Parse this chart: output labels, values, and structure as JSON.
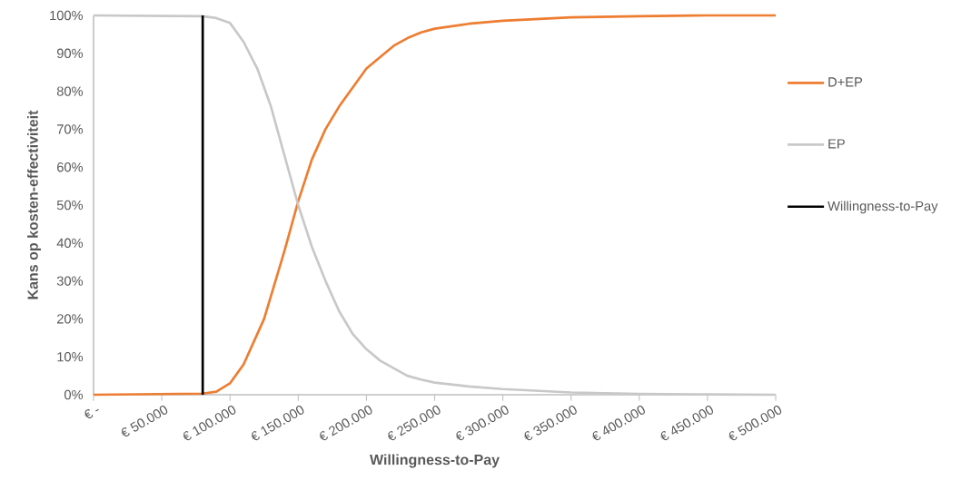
{
  "chart_data": {
    "type": "line",
    "xlabel": "Willingness-to-Pay",
    "ylabel": "Kans op kosten-effectiviteit",
    "xlim": [
      0,
      500000
    ],
    "ylim": [
      0,
      100
    ],
    "xticks": [
      {
        "value": 0,
        "label": "€ -"
      },
      {
        "value": 50000,
        "label": "€ 50.000"
      },
      {
        "value": 100000,
        "label": "€ 100.000"
      },
      {
        "value": 150000,
        "label": "€ 150.000"
      },
      {
        "value": 200000,
        "label": "€ 200.000"
      },
      {
        "value": 250000,
        "label": "€ 250.000"
      },
      {
        "value": 300000,
        "label": "€ 300.000"
      },
      {
        "value": 350000,
        "label": "€ 350.000"
      },
      {
        "value": 400000,
        "label": "€ 400.000"
      },
      {
        "value": 450000,
        "label": "€ 450.000"
      },
      {
        "value": 500000,
        "label": "€ 500.000"
      }
    ],
    "yticks": [
      {
        "value": 0,
        "label": "0%"
      },
      {
        "value": 10,
        "label": "10%"
      },
      {
        "value": 20,
        "label": "20%"
      },
      {
        "value": 30,
        "label": "30%"
      },
      {
        "value": 40,
        "label": "40%"
      },
      {
        "value": 50,
        "label": "50%"
      },
      {
        "value": 60,
        "label": "60%"
      },
      {
        "value": 70,
        "label": "70%"
      },
      {
        "value": 80,
        "label": "80%"
      },
      {
        "value": 90,
        "label": "90%"
      },
      {
        "value": 100,
        "label": "100%"
      }
    ],
    "legend": "right",
    "series": [
      {
        "name": "D+EP",
        "color": "#ed7d31",
        "x": [
          0,
          80000,
          90000,
          100000,
          110000,
          120000,
          125000,
          130000,
          140000,
          150000,
          160000,
          170000,
          180000,
          190000,
          200000,
          210000,
          220000,
          230000,
          240000,
          250000,
          275000,
          300000,
          350000,
          400000,
          450000,
          500000
        ],
        "values": [
          0,
          0.3,
          0.8,
          3,
          8,
          16,
          20,
          26,
          38,
          51,
          62,
          70,
          76,
          81,
          86,
          89,
          92,
          94,
          95.5,
          96.5,
          97.8,
          98.6,
          99.5,
          99.8,
          100,
          100
        ]
      },
      {
        "name": "EP",
        "color": "#c8c8c8",
        "x": [
          0,
          80000,
          90000,
          100000,
          110000,
          120000,
          130000,
          140000,
          150000,
          160000,
          170000,
          180000,
          190000,
          200000,
          210000,
          220000,
          230000,
          240000,
          250000,
          275000,
          300000,
          350000,
          400000,
          450000,
          500000
        ],
        "values": [
          100,
          99.8,
          99.3,
          98,
          93,
          86,
          76,
          63,
          50,
          39,
          30,
          22,
          16,
          12,
          9,
          7,
          5,
          4,
          3.2,
          2.2,
          1.5,
          0.6,
          0.2,
          0.1,
          0
        ]
      },
      {
        "name": "Willingness-to-Pay",
        "color": "#000000",
        "x": [
          80000,
          80000
        ],
        "values": [
          0,
          100
        ]
      }
    ]
  }
}
